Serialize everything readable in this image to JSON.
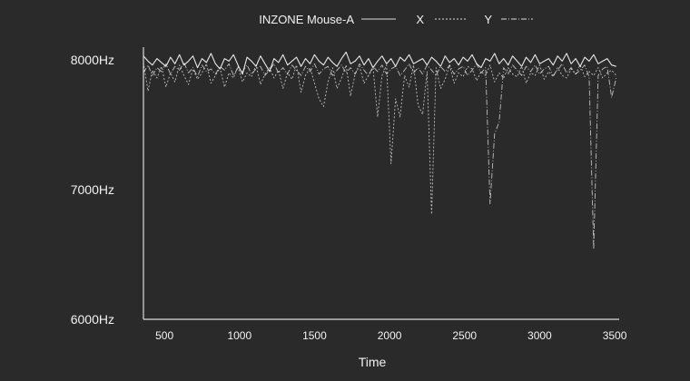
{
  "chart_data": {
    "type": "line",
    "title": "",
    "xlabel": "Time",
    "ylabel": "",
    "xlim": [
      360,
      3530
    ],
    "ylim": [
      6000,
      8000
    ],
    "xticks": [
      500,
      1000,
      1500,
      2000,
      2500,
      3000,
      3500
    ],
    "xtick_labels": [
      "500",
      "1000",
      "1500",
      "2000",
      "2500",
      "3000",
      "3500"
    ],
    "yticks": [
      8000,
      7000,
      6000
    ],
    "ytick_labels": [
      "8000Hz",
      "7000Hz",
      "6000Hz"
    ],
    "grid": false,
    "legend_position": "top-center",
    "colors": {
      "background": "#2a2a2a",
      "line": "#f2f2f2",
      "axis": "#d9d9d9"
    },
    "series": [
      {
        "name": "INZONE Mouse-A",
        "style": "solid",
        "x": [
          360,
          390,
          420,
          450,
          480,
          510,
          540,
          570,
          600,
          630,
          660,
          690,
          720,
          750,
          780,
          810,
          840,
          870,
          900,
          930,
          960,
          990,
          1020,
          1050,
          1080,
          1110,
          1140,
          1170,
          1200,
          1230,
          1260,
          1290,
          1320,
          1350,
          1380,
          1410,
          1440,
          1470,
          1500,
          1530,
          1560,
          1590,
          1620,
          1650,
          1680,
          1710,
          1740,
          1770,
          1800,
          1830,
          1860,
          1890,
          1920,
          1950,
          1980,
          2010,
          2040,
          2070,
          2100,
          2130,
          2160,
          2190,
          2220,
          2250,
          2280,
          2310,
          2340,
          2370,
          2400,
          2430,
          2460,
          2490,
          2520,
          2550,
          2580,
          2610,
          2640,
          2670,
          2700,
          2730,
          2760,
          2790,
          2820,
          2850,
          2880,
          2910,
          2940,
          2970,
          3000,
          3030,
          3060,
          3090,
          3120,
          3150,
          3180,
          3210,
          3240,
          3270,
          3300,
          3330,
          3360,
          3390,
          3420,
          3450,
          3480,
          3510
        ],
        "y": [
          8030,
          7990,
          7960,
          8010,
          7980,
          7950,
          8020,
          7970,
          8040,
          7960,
          7990,
          8030,
          7940,
          8010,
          7980,
          8050,
          7970,
          7930,
          8010,
          7990,
          8040,
          7960,
          7890,
          8020,
          7990,
          7950,
          8030,
          7970,
          7910,
          8010,
          7980,
          8040,
          7960,
          7990,
          8020,
          7950,
          8010,
          7970,
          8040,
          7990,
          7960,
          8020,
          7980,
          7950,
          8010,
          8060,
          7970,
          7990,
          8030,
          7960,
          8010,
          7940,
          7990,
          8030,
          7970,
          8010,
          7950,
          8020,
          7990,
          8040,
          7970,
          7990,
          8010,
          7960,
          8020,
          7990,
          7950,
          8030,
          7980,
          8010,
          7960,
          8020,
          7990,
          8040,
          7970,
          7940,
          8010,
          7990,
          8050,
          7970,
          8010,
          7960,
          8030,
          7990,
          7950,
          8020,
          7980,
          8040,
          7970,
          7990,
          8010,
          7960,
          8030,
          7990,
          8050,
          7970,
          8010,
          7950,
          8020,
          7990,
          8040,
          7970,
          7990,
          8010,
          7960,
          7950
        ],
        "y_ticks_note": ""
      },
      {
        "name": "X",
        "style": "dotted",
        "x": [
          360,
          390,
          420,
          450,
          480,
          510,
          540,
          570,
          600,
          630,
          660,
          690,
          720,
          750,
          780,
          810,
          840,
          870,
          900,
          930,
          960,
          990,
          1020,
          1050,
          1080,
          1110,
          1140,
          1170,
          1200,
          1230,
          1260,
          1290,
          1320,
          1350,
          1380,
          1410,
          1440,
          1470,
          1500,
          1530,
          1560,
          1590,
          1620,
          1650,
          1680,
          1710,
          1740,
          1770,
          1800,
          1830,
          1860,
          1890,
          1920,
          1950,
          1980,
          2010,
          2040,
          2070,
          2100,
          2130,
          2160,
          2190,
          2220,
          2250,
          2280,
          2310,
          2340,
          2370,
          2400,
          2430,
          2460,
          2490,
          2520,
          2550,
          2580,
          2610,
          2640,
          2670,
          2700,
          2730,
          2760,
          2790,
          2820,
          2850,
          2880,
          2910,
          2940,
          2970,
          3000,
          3030,
          3060,
          3090,
          3120,
          3150,
          3180,
          3210,
          3240,
          3270,
          3300,
          3330,
          3360,
          3390,
          3420,
          3450,
          3480,
          3510
        ],
        "y": [
          7980,
          7760,
          7920,
          7860,
          7950,
          7790,
          7900,
          7830,
          7960,
          7880,
          7810,
          7930,
          7850,
          7900,
          7970,
          7820,
          7880,
          7940,
          7790,
          7900,
          7860,
          7950,
          7830,
          7900,
          7870,
          7960,
          7810,
          7890,
          7940,
          7860,
          7920,
          7780,
          7900,
          7850,
          7960,
          7750,
          7880,
          7940,
          7820,
          7700,
          7640,
          7830,
          7940,
          7780,
          7860,
          7960,
          7720,
          7890,
          7950,
          7820,
          7880,
          7940,
          7560,
          7880,
          7960,
          7200,
          7700,
          7560,
          7880,
          7790,
          7960,
          7650,
          7580,
          7910,
          6810,
          7940,
          7780,
          7850,
          7960,
          7820,
          7900,
          7870,
          7950,
          7930,
          7840,
          7910,
          7880,
          7960,
          7830,
          7900,
          7860,
          7940,
          7890,
          7870,
          7950,
          7820,
          7900,
          7880,
          7960,
          7850,
          7910,
          7870,
          7940,
          7880,
          7860,
          7930,
          7890,
          7960,
          7870,
          7910,
          7880,
          7940,
          7860,
          7900,
          7920,
          7880
        ],
        "y_ticks_note": ""
      },
      {
        "name": "Y",
        "style": "dashdot",
        "x": [
          360,
          390,
          420,
          450,
          480,
          510,
          540,
          570,
          600,
          630,
          660,
          690,
          720,
          750,
          780,
          810,
          840,
          870,
          900,
          930,
          960,
          990,
          1020,
          1050,
          1080,
          1110,
          1140,
          1170,
          1200,
          1230,
          1260,
          1290,
          1320,
          1350,
          1380,
          1410,
          1440,
          1470,
          1500,
          1530,
          1560,
          1590,
          1620,
          1650,
          1680,
          1710,
          1740,
          1770,
          1800,
          1830,
          1860,
          1890,
          1920,
          1950,
          1980,
          2010,
          2040,
          2070,
          2100,
          2130,
          2160,
          2190,
          2220,
          2250,
          2280,
          2310,
          2340,
          2370,
          2400,
          2430,
          2460,
          2490,
          2520,
          2550,
          2580,
          2610,
          2640,
          2670,
          2700,
          2730,
          2760,
          2790,
          2820,
          2850,
          2880,
          2910,
          2940,
          2970,
          3000,
          3030,
          3060,
          3090,
          3120,
          3150,
          3180,
          3210,
          3240,
          3270,
          3300,
          3330,
          3360,
          3390,
          3420,
          3450,
          3480,
          3510
        ],
        "y": [
          7900,
          7960,
          7880,
          7940,
          7910,
          7970,
          7890,
          7950,
          7920,
          7980,
          7900,
          7940,
          7870,
          7960,
          7910,
          7930,
          7890,
          7950,
          7920,
          7970,
          7880,
          7940,
          7910,
          7960,
          7890,
          7930,
          7950,
          7880,
          7920,
          7970,
          7900,
          7940,
          7890,
          7960,
          7920,
          7880,
          7950,
          7910,
          7970,
          7890,
          7930,
          7950,
          7880,
          7920,
          7960,
          7900,
          7940,
          7890,
          7970,
          7920,
          7880,
          7950,
          7910,
          7960,
          7890,
          7930,
          7950,
          7880,
          7920,
          7970,
          7900,
          7940,
          7890,
          7960,
          7920,
          7880,
          7950,
          7910,
          7960,
          7890,
          7930,
          7950,
          7880,
          7920,
          7970,
          7900,
          7940,
          6890,
          7430,
          7520,
          7940,
          7890,
          7960,
          7920,
          7880,
          7950,
          7910,
          7960,
          7890,
          7930,
          7950,
          7880,
          7920,
          7970,
          7900,
          7940,
          7890,
          7920,
          7960,
          7870,
          6540,
          7880,
          7930,
          7950,
          7710,
          7860
        ],
        "y_ticks_note": ""
      }
    ]
  }
}
